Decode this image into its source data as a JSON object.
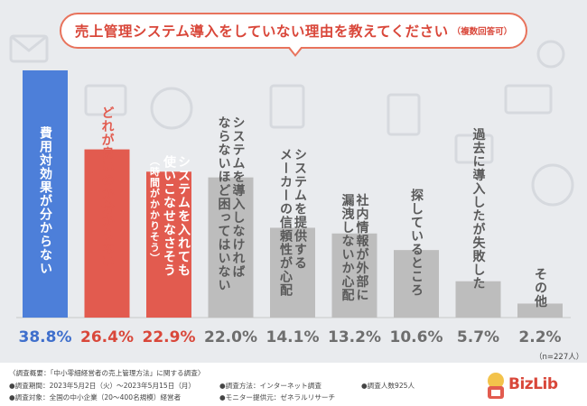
{
  "title": {
    "main": "売上管理システム導入をしていない理由を教えてください",
    "sub": "（複数回答可）"
  },
  "chart_data": {
    "type": "bar",
    "title": "売上管理システム導入をしていない理由を教えてください（複数回答可）",
    "categories": [
      "費用対効果が分からない",
      "どれが良いのか分からない",
      "システムを入れても使いこなせなさそう（時間がかかりそう）",
      "システムを導入しなければならないほど困ってはいない",
      "システムを提供するメーカーの信頼性が心配",
      "社内情報が外部に漏洩しないか心配",
      "探しているところ",
      "過去に導入したが失敗した",
      "その他"
    ],
    "values": [
      38.8,
      26.4,
      22.9,
      22.0,
      14.1,
      13.2,
      10.6,
      5.7,
      2.2
    ],
    "value_labels": [
      "38.8%",
      "26.4%",
      "22.9%",
      "22.0%",
      "14.1%",
      "13.2%",
      "10.6%",
      "5.7%",
      "2.2%"
    ],
    "label_lines": [
      [
        "費用対効果が分からない"
      ],
      [
        "どれが良いのか分からない"
      ],
      [
        "システムを入れても",
        "使いこなせなさそう",
        "（時間がかかりそう）"
      ],
      [
        "システムを導入しなければ",
        "ならないほど困ってはいない"
      ],
      [
        "システムを提供する",
        "メーカーの信頼性が心配"
      ],
      [
        "社内情報が外部に",
        "漏洩しないか心配"
      ],
      [
        "探しているところ"
      ],
      [
        "過去に導入したが失敗した"
      ],
      [
        "その他"
      ]
    ],
    "ylim": [
      0,
      40
    ],
    "sample_note": "（n=227人）"
  },
  "colors": {
    "blue": "#4d7fd9",
    "red": "#e25b4f",
    "gray": "#bdbdbd",
    "label_gray": "#5a5a5a",
    "pct_blue": "#3f6fcc",
    "pct_red": "#d9473a",
    "pct_gray": "#6e6e6e"
  },
  "footer": {
    "line1": "〈調査概要：「中小零細経営者の売上管理方法」に関する調査〉",
    "period": "●調査期間：2023年5月2日（火）～2023年5月15日（月）",
    "target": "●調査対象：全国の中小企業（20～400名規模）経営者",
    "method": "●調査方法：インターネット調査",
    "provider": "●モニター提供元：ゼネラルリサーチ",
    "count": "●調査人数925人"
  },
  "logo": {
    "text": "BizLib"
  }
}
